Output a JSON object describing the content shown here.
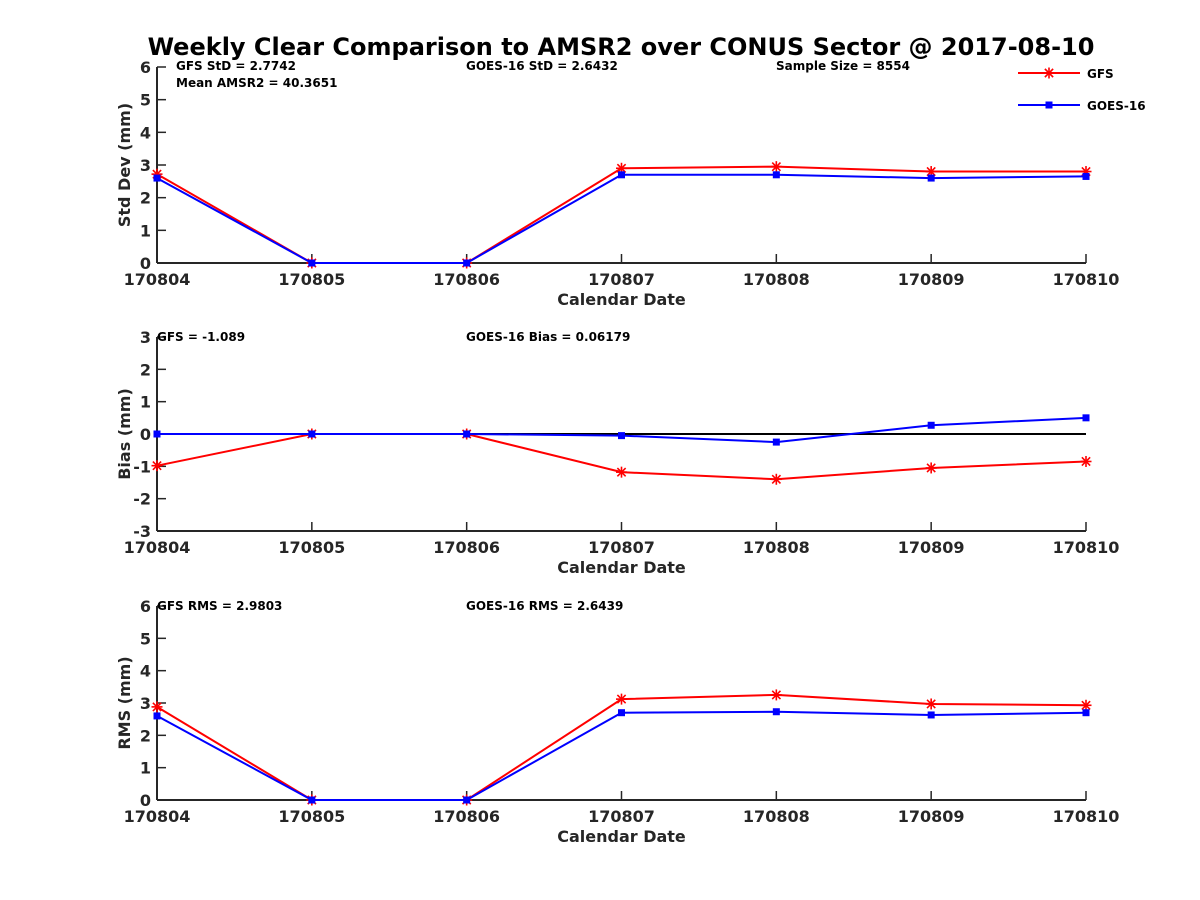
{
  "figure": {
    "title": "Weekly Clear Comparison to AMSR2 over CONUS Sector @ 2017-08-10"
  },
  "legend": {
    "placement": "top-right",
    "entries": [
      {
        "name": "GFS",
        "color": "#ff0000",
        "marker": "asterisk"
      },
      {
        "name": "GOES-16",
        "color": "#0000ff",
        "marker": "square"
      }
    ]
  },
  "chart_data": [
    {
      "type": "line",
      "xlabel": "Calendar Date",
      "ylabel": "Std Dev (mm)",
      "categories": [
        "170804",
        "170805",
        "170806",
        "170807",
        "170808",
        "170809",
        "170810"
      ],
      "ylim": [
        0,
        6
      ],
      "yticks": [
        0,
        1,
        2,
        3,
        4,
        5,
        6
      ],
      "zero_line": false,
      "annotations": [
        "GFS StD = 2.7742",
        "Mean AMSR2 = 40.3651",
        "GOES-16 StD = 2.6432",
        "Sample Size = 8554"
      ],
      "series": [
        {
          "name": "GFS",
          "color": "#ff0000",
          "values": [
            2.72,
            0.0,
            0.0,
            2.9,
            2.95,
            2.8,
            2.8
          ]
        },
        {
          "name": "GOES-16",
          "color": "#0000ff",
          "values": [
            2.6,
            0.0,
            0.0,
            2.7,
            2.7,
            2.6,
            2.65
          ]
        }
      ]
    },
    {
      "type": "line",
      "xlabel": "Calendar Date",
      "ylabel": "Bias (mm)",
      "categories": [
        "170804",
        "170805",
        "170806",
        "170807",
        "170808",
        "170809",
        "170810"
      ],
      "ylim": [
        -3,
        3
      ],
      "yticks": [
        -3,
        -2,
        -1,
        0,
        1,
        2,
        3
      ],
      "zero_line": true,
      "annotations": [
        "GFS = -1.089",
        "GOES-16 Bias  = 0.06179"
      ],
      "series": [
        {
          "name": "GFS",
          "color": "#ff0000",
          "values": [
            -0.98,
            0.0,
            0.0,
            -1.18,
            -1.4,
            -1.05,
            -0.85
          ]
        },
        {
          "name": "GOES-16",
          "color": "#0000ff",
          "values": [
            0.0,
            0.0,
            0.0,
            -0.05,
            -0.25,
            0.27,
            0.5
          ]
        }
      ]
    },
    {
      "type": "line",
      "xlabel": "Calendar Date",
      "ylabel": "RMS (mm)",
      "categories": [
        "170804",
        "170805",
        "170806",
        "170807",
        "170808",
        "170809",
        "170810"
      ],
      "ylim": [
        0,
        6
      ],
      "yticks": [
        0,
        1,
        2,
        3,
        4,
        5,
        6
      ],
      "zero_line": false,
      "annotations": [
        "GFS RMS = 2.9803",
        "GOES-16 RMS = 2.6439"
      ],
      "series": [
        {
          "name": "GFS",
          "color": "#ff0000",
          "values": [
            2.88,
            0.0,
            0.0,
            3.12,
            3.25,
            2.97,
            2.93
          ]
        },
        {
          "name": "GOES-16",
          "color": "#0000ff",
          "values": [
            2.6,
            0.0,
            0.0,
            2.7,
            2.73,
            2.63,
            2.7
          ]
        }
      ]
    }
  ]
}
